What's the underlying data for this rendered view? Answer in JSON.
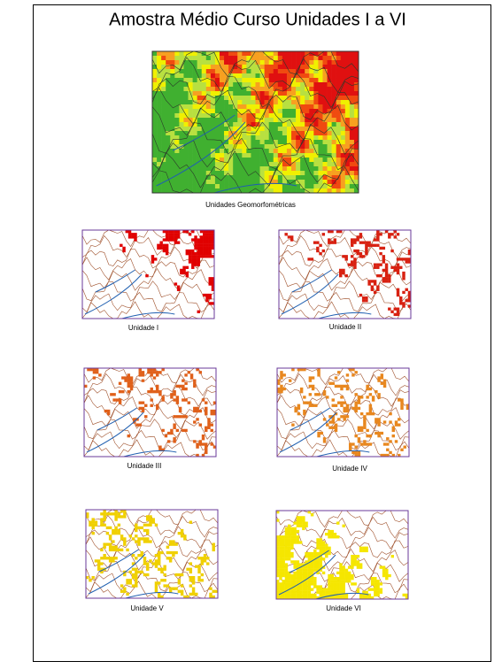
{
  "title": "Amostra Médio Curso Unidades I a VI",
  "main_map": {
    "caption": "Unidades Geomorfométricas"
  },
  "panels": [
    {
      "caption": "Unidade I"
    },
    {
      "caption": "Unidade II"
    },
    {
      "caption": "Unidade III"
    },
    {
      "caption": "Unidade IV"
    },
    {
      "caption": "Unidade V"
    },
    {
      "caption": "Unidade VI"
    }
  ]
}
